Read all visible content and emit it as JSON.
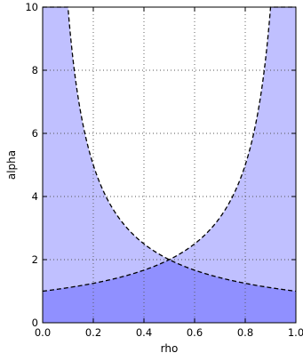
{
  "chart_data": {
    "type": "area",
    "title": "",
    "xlabel": "rho",
    "ylabel": "alpha",
    "xlim": [
      0.0,
      1.0
    ],
    "ylim": [
      0,
      10
    ],
    "xticks": [
      "0.0",
      "0.2",
      "0.4",
      "0.6",
      "0.8",
      "1.0"
    ],
    "yticks": [
      "0",
      "2",
      "4",
      "6",
      "8",
      "10"
    ],
    "grid": true,
    "grid_style": "dotted",
    "series": [
      {
        "curve_style": "dashed",
        "x": [
          0.0,
          0.1,
          0.2,
          0.3,
          0.4,
          0.5,
          0.6,
          0.7,
          0.8,
          0.9,
          1.0
        ],
        "y": [
          1.0,
          1.11,
          1.25,
          1.43,
          1.67,
          2.0,
          2.5,
          3.33,
          5.0,
          10.0,
          10.0
        ]
      },
      {
        "curve_style": "dashed",
        "x": [
          0.0,
          0.1,
          0.2,
          0.3,
          0.4,
          0.5,
          0.6,
          0.7,
          0.8,
          0.9,
          1.0
        ],
        "y": [
          10.0,
          10.0,
          5.0,
          3.33,
          2.5,
          2.0,
          1.67,
          1.43,
          1.25,
          1.11,
          1.0
        ]
      }
    ],
    "colors": {
      "light_fill": "#c0c0ff",
      "dark_fill": "#9090ff",
      "curve": "#000000",
      "grid": "#555555"
    }
  }
}
